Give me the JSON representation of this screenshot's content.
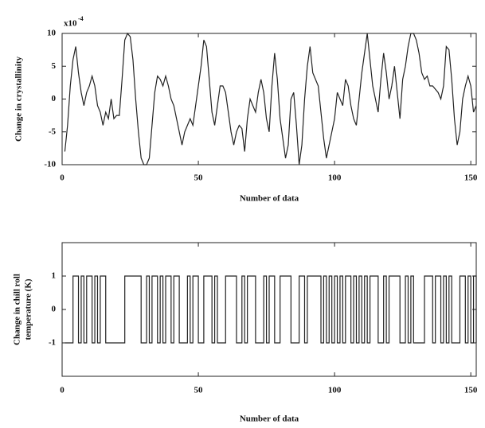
{
  "chart_data": [
    {
      "type": "line",
      "ylabel": "Change in crystallinity",
      "xlabel": "Number of data",
      "y_multiplier": "x10",
      "y_exponent": "-4",
      "color": "#222222",
      "xlim": [
        0,
        152
      ],
      "xticks": [
        0,
        50,
        100,
        150
      ],
      "ylim": [
        -10,
        10
      ],
      "yticks": [
        10,
        5,
        0,
        -5,
        -10
      ],
      "x": [
        1,
        2,
        3,
        4,
        5,
        6,
        7,
        8,
        9,
        10,
        11,
        12,
        13,
        14,
        15,
        16,
        17,
        18,
        19,
        20,
        21,
        22,
        23,
        24,
        25,
        26,
        27,
        28,
        29,
        30,
        31,
        32,
        33,
        34,
        35,
        36,
        37,
        38,
        39,
        40,
        41,
        42,
        43,
        44,
        45,
        46,
        47,
        48,
        49,
        50,
        51,
        52,
        53,
        54,
        55,
        56,
        57,
        58,
        59,
        60,
        61,
        62,
        63,
        64,
        65,
        66,
        67,
        68,
        69,
        70,
        71,
        72,
        73,
        74,
        75,
        76,
        77,
        78,
        79,
        80,
        81,
        82,
        83,
        84,
        85,
        86,
        87,
        88,
        89,
        90,
        91,
        92,
        93,
        94,
        95,
        96,
        97,
        98,
        99,
        100,
        101,
        102,
        103,
        104,
        105,
        106,
        107,
        108,
        109,
        110,
        111,
        112,
        113,
        114,
        115,
        116,
        117,
        118,
        119,
        120,
        121,
        122,
        123,
        124,
        125,
        126,
        127,
        128,
        129,
        130,
        131,
        132,
        133,
        134,
        135,
        136,
        137,
        138,
        139,
        140,
        141,
        142,
        143,
        144,
        145,
        146,
        147,
        148,
        149,
        150,
        151,
        152
      ],
      "values": [
        -8,
        -4,
        2,
        6,
        8,
        4,
        1,
        -1,
        1,
        2,
        3.5,
        2,
        -1,
        -2,
        -4,
        -2,
        -3,
        0,
        -3,
        -2.5,
        -2.5,
        3,
        9,
        10,
        9.5,
        6,
        0,
        -5,
        -9,
        -10,
        -10,
        -9,
        -4,
        1,
        3.5,
        3,
        2,
        3.5,
        2,
        0,
        -1,
        -3,
        -5,
        -7,
        -5,
        -4,
        -3,
        -4,
        -1,
        2,
        5,
        9,
        8,
        3,
        -2,
        -4,
        -1,
        2,
        2,
        1,
        -2,
        -5,
        -7,
        -5,
        -4,
        -4.5,
        -8,
        -3,
        0,
        -1,
        -2,
        1,
        3,
        1,
        -3,
        -5,
        2,
        7,
        3,
        -3,
        -6,
        -9,
        -7,
        0,
        1,
        -4,
        -10,
        -7,
        0,
        5,
        8,
        4,
        3,
        2,
        -2,
        -6,
        -9,
        -7,
        -5,
        -3,
        1,
        0,
        -1,
        3,
        2,
        -1,
        -3,
        -4,
        0,
        4,
        7,
        10,
        6,
        2,
        0,
        -2,
        3,
        7,
        4,
        0,
        2,
        5,
        1,
        -3,
        3,
        5,
        8,
        10,
        10,
        9,
        7,
        4,
        3,
        3.5,
        2,
        2,
        1.5,
        1,
        0,
        2,
        8,
        7.5,
        3,
        -3,
        -7,
        -5,
        0,
        2,
        3.5,
        2,
        -2,
        -1
      ]
    },
    {
      "type": "line",
      "step": "post",
      "ylabel": [
        "Change in chill roll",
        "temperature (K)"
      ],
      "xlabel": "Number of data",
      "color": "#222222",
      "xlim": [
        0,
        152
      ],
      "xticks": [
        0,
        50,
        100,
        150
      ],
      "ylim": [
        -2,
        2
      ],
      "yticks": [
        1,
        0,
        -1
      ],
      "x": [
        1,
        2,
        3,
        4,
        5,
        6,
        7,
        8,
        9,
        10,
        11,
        12,
        13,
        14,
        15,
        16,
        17,
        18,
        19,
        20,
        21,
        22,
        23,
        24,
        25,
        26,
        27,
        28,
        29,
        30,
        31,
        32,
        33,
        34,
        35,
        36,
        37,
        38,
        39,
        40,
        41,
        42,
        43,
        44,
        45,
        46,
        47,
        48,
        49,
        50,
        51,
        52,
        53,
        54,
        55,
        56,
        57,
        58,
        59,
        60,
        61,
        62,
        63,
        64,
        65,
        66,
        67,
        68,
        69,
        70,
        71,
        72,
        73,
        74,
        75,
        76,
        77,
        78,
        79,
        80,
        81,
        82,
        83,
        84,
        85,
        86,
        87,
        88,
        89,
        90,
        91,
        92,
        93,
        94,
        95,
        96,
        97,
        98,
        99,
        100,
        101,
        102,
        103,
        104,
        105,
        106,
        107,
        108,
        109,
        110,
        111,
        112,
        113,
        114,
        115,
        116,
        117,
        118,
        119,
        120,
        121,
        122,
        123,
        124,
        125,
        126,
        127,
        128,
        129,
        130,
        131,
        132,
        133,
        134,
        135,
        136,
        137,
        138,
        139,
        140,
        141,
        142,
        143,
        144,
        145,
        146,
        147,
        148,
        149,
        150,
        151,
        152
      ],
      "values": [
        -1,
        -1,
        -1,
        1,
        1,
        -1,
        1,
        -1,
        1,
        1,
        -1,
        1,
        -1,
        1,
        1,
        -1,
        -1,
        -1,
        -1,
        -1,
        -1,
        -1,
        1,
        1,
        1,
        1,
        1,
        1,
        -1,
        -1,
        1,
        -1,
        1,
        1,
        -1,
        1,
        -1,
        1,
        1,
        -1,
        1,
        1,
        -1,
        -1,
        -1,
        1,
        -1,
        1,
        1,
        -1,
        -1,
        1,
        1,
        1,
        -1,
        1,
        -1,
        -1,
        -1,
        1,
        1,
        1,
        1,
        -1,
        -1,
        1,
        -1,
        1,
        1,
        1,
        -1,
        -1,
        -1,
        1,
        -1,
        1,
        1,
        -1,
        -1,
        1,
        1,
        1,
        1,
        -1,
        -1,
        -1,
        1,
        1,
        -1,
        1,
        1,
        1,
        1,
        1,
        -1,
        1,
        -1,
        1,
        -1,
        1,
        -1,
        1,
        -1,
        1,
        1,
        -1,
        1,
        -1,
        1,
        -1,
        1,
        -1,
        1,
        1,
        1,
        -1,
        -1,
        1,
        -1,
        1,
        1,
        1,
        1,
        -1,
        -1,
        1,
        -1,
        1,
        -1,
        -1,
        -1,
        -1,
        1,
        1,
        1,
        -1,
        1,
        1,
        -1,
        1,
        -1,
        1,
        -1,
        -1,
        -1,
        1,
        1,
        -1,
        1,
        -1,
        1,
        -1
      ]
    }
  ]
}
